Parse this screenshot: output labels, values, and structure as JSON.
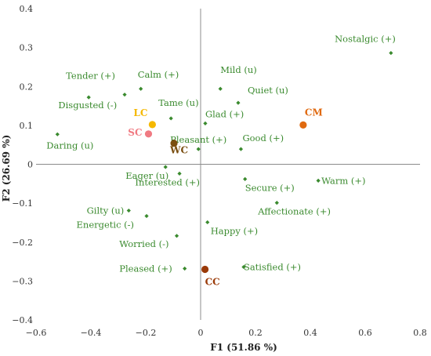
{
  "chart_data": {
    "type": "scatter",
    "xlabel": "F1 (51.86 %)",
    "ylabel": "F2 (26.69 %)",
    "xlim": [
      -0.6,
      0.8
    ],
    "ylim": [
      -0.4,
      0.4
    ],
    "x_ticks": [
      "−0.6",
      "−0.4",
      "−0.2",
      "0",
      "0.2",
      "0.4",
      "0.6",
      "0.8"
    ],
    "y_ticks": [
      "0.4",
      "0.3",
      "0.2",
      "0.1",
      "0",
      "−0.1",
      "−0.2",
      "−0.3",
      "−0.4"
    ],
    "colors": {
      "emotion": "#3a8a2e",
      "LC": "#f5b800",
      "SC": "#f07a82",
      "WC": "#7a4e10",
      "CM": "#e06a10",
      "CC": "#9a3a08"
    },
    "points": [
      {
        "label": "Nostalgic (+)",
        "x": 0.694,
        "y": 0.286,
        "anchor": "end",
        "dx": 6,
        "dy": -14
      },
      {
        "label": "Mild (u)",
        "x": 0.072,
        "y": 0.194,
        "anchor": "start",
        "dx": 0,
        "dy": -20
      },
      {
        "label": "Quiet (u)",
        "x": 0.137,
        "y": 0.158,
        "anchor": "start",
        "dx": 12,
        "dy": -12
      },
      {
        "label": "Tender (+)",
        "x": -0.277,
        "y": 0.179,
        "anchor": "end",
        "dx": -12,
        "dy": -20
      },
      {
        "label": "Calm (+)",
        "x": -0.218,
        "y": 0.194,
        "anchor": "start",
        "dx": -4,
        "dy": -14
      },
      {
        "label": "Disgusted (-)",
        "x": -0.408,
        "y": 0.172,
        "anchor": "end",
        "dx": 36,
        "dy": 14
      },
      {
        "label": "Tame (u)",
        "x": -0.108,
        "y": 0.118,
        "anchor": "start",
        "dx": -16,
        "dy": -16
      },
      {
        "label": "Glad (+)",
        "x": 0.017,
        "y": 0.105,
        "anchor": "start",
        "dx": 0,
        "dy": -8
      },
      {
        "label": "Daring (u)",
        "x": -0.522,
        "y": 0.077,
        "anchor": "start",
        "dx": -14,
        "dy": 18
      },
      {
        "label": "Pleasant (+)",
        "x": -0.008,
        "y": 0.039,
        "anchor": "middle",
        "dx": 0,
        "dy": -8
      },
      {
        "label": "Good (+)",
        "x": 0.147,
        "y": 0.039,
        "anchor": "start",
        "dx": 2,
        "dy": -10
      },
      {
        "label": "Eager (u)",
        "x": -0.128,
        "y": -0.007,
        "anchor": "end",
        "dx": 4,
        "dy": 15
      },
      {
        "label": "Interested (+)",
        "x": -0.077,
        "y": -0.024,
        "anchor": "end",
        "dx": 26,
        "dy": 15
      },
      {
        "label": "Secure (+)",
        "x": 0.162,
        "y": -0.038,
        "anchor": "start",
        "dx": 0,
        "dy": 15
      },
      {
        "label": "Warm (+)",
        "x": 0.429,
        "y": -0.042,
        "anchor": "start",
        "dx": 4,
        "dy": 4
      },
      {
        "label": "Affectionate (+)",
        "x": 0.278,
        "y": -0.099,
        "anchor": "start",
        "dx": -24,
        "dy": 15
      },
      {
        "label": "Gilty (u)",
        "x": -0.262,
        "y": -0.119,
        "anchor": "end",
        "dx": -6,
        "dy": 4
      },
      {
        "label": "Energetic (-)",
        "x": -0.197,
        "y": -0.133,
        "anchor": "end",
        "dx": -16,
        "dy": 15
      },
      {
        "label": "Happy (+)",
        "x": 0.025,
        "y": -0.149,
        "anchor": "start",
        "dx": 4,
        "dy": 15
      },
      {
        "label": "Worried (-)",
        "x": -0.087,
        "y": -0.184,
        "anchor": "end",
        "dx": -10,
        "dy": 14
      },
      {
        "label": "Pleased (+)",
        "x": -0.058,
        "y": -0.268,
        "anchor": "end",
        "dx": -16,
        "dy": 4
      },
      {
        "label": "Satisfied (+)",
        "x": 0.157,
        "y": -0.264,
        "anchor": "start",
        "dx": 0,
        "dy": 4
      }
    ],
    "groups": [
      {
        "label": "LC",
        "x": -0.176,
        "y": 0.102,
        "colorKey": "LC",
        "anchor": "end",
        "dx": -6,
        "dy": -11
      },
      {
        "label": "SC",
        "x": -0.19,
        "y": 0.078,
        "colorKey": "SC",
        "anchor": "end",
        "dx": -8,
        "dy": 2
      },
      {
        "label": "WC",
        "x": -0.097,
        "y": 0.054,
        "colorKey": "WC",
        "anchor": "start",
        "dx": -5,
        "dy": 13
      },
      {
        "label": "CM",
        "x": 0.374,
        "y": 0.101,
        "colorKey": "CM",
        "anchor": "start",
        "dx": 2,
        "dy": -12
      },
      {
        "label": "CC",
        "x": 0.016,
        "y": -0.27,
        "colorKey": "CC",
        "anchor": "start",
        "dx": 0,
        "dy": 20
      }
    ]
  }
}
